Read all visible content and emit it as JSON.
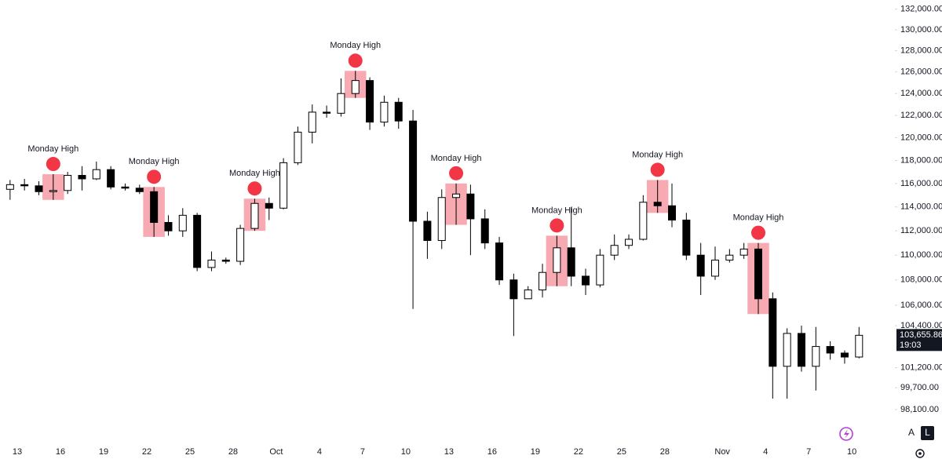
{
  "chart_data": {
    "type": "candlestick",
    "log_scale": true,
    "up_color": "#ffffff",
    "down_color": "#000000",
    "wick_color": "#000000",
    "box_color": "#f7a1aa",
    "marker_color": "#f23645",
    "categories": [
      null,
      "13",
      null,
      null,
      "16",
      null,
      null,
      "19",
      null,
      null,
      "22",
      null,
      null,
      "25",
      null,
      null,
      "28",
      null,
      null,
      "Oct",
      null,
      null,
      "4",
      null,
      null,
      "7",
      null,
      null,
      "10",
      null,
      null,
      "13",
      null,
      null,
      "16",
      null,
      null,
      "19",
      null,
      null,
      "22",
      null,
      null,
      "25",
      null,
      null,
      "28",
      null,
      null,
      null,
      "Nov",
      null,
      null,
      "4",
      null,
      null,
      "7",
      null,
      null,
      "10"
    ],
    "open": [
      115500,
      115900,
      115800,
      115300,
      115400,
      116700,
      116400,
      117200,
      115700,
      115600,
      115300,
      112700,
      112000,
      113300,
      109000,
      109600,
      109500,
      112200,
      114300,
      113900,
      117800,
      120500,
      122300,
      122200,
      124000,
      125200,
      121400,
      123200,
      121500,
      112800,
      111200,
      114800,
      115100,
      113000,
      111000,
      108000,
      106500,
      107200,
      108600,
      110600,
      108300,
      107600,
      110000,
      110800,
      111300,
      114400,
      114100,
      112900,
      110000,
      108300,
      109600,
      110000,
      110500,
      106500,
      101300,
      103800,
      101300,
      102800,
      102300,
      102000
    ],
    "high": [
      116300,
      116400,
      116200,
      116800,
      117000,
      117500,
      117900,
      117500,
      116000,
      115900,
      115700,
      113300,
      113900,
      113500,
      110300,
      109800,
      112500,
      114700,
      114800,
      118200,
      121000,
      123000,
      122900,
      125400,
      126100,
      125500,
      123800,
      123600,
      122500,
      113600,
      115500,
      116000,
      115900,
      113800,
      111500,
      108500,
      107500,
      109300,
      111600,
      114000,
      108900,
      110500,
      111700,
      111700,
      115000,
      116300,
      116000,
      113500,
      111000,
      110700,
      110500,
      111000,
      111000,
      107000,
      104200,
      104400,
      104300,
      103200,
      102500,
      104300
    ],
    "low": [
      114600,
      115400,
      115000,
      114600,
      115100,
      115400,
      116300,
      115500,
      115400,
      115100,
      111500,
      111600,
      111500,
      108700,
      108700,
      109300,
      109200,
      112000,
      112900,
      113800,
      117600,
      119500,
      121800,
      121900,
      123600,
      120700,
      121000,
      120800,
      105700,
      109700,
      110500,
      112500,
      110000,
      110500,
      107600,
      103600,
      106500,
      106600,
      107500,
      107500,
      106800,
      107400,
      109600,
      110500,
      111200,
      113500,
      112300,
      109600,
      106800,
      108000,
      109400,
      109700,
      105300,
      98900,
      98900,
      100900,
      99500,
      101800,
      101500,
      101900
    ],
    "close": [
      115900,
      115800,
      115300,
      115400,
      116700,
      116400,
      117200,
      115700,
      115600,
      115300,
      112700,
      112000,
      113300,
      109000,
      109600,
      109500,
      112200,
      114300,
      113900,
      117800,
      120500,
      122300,
      122200,
      124000,
      125200,
      121400,
      123200,
      121500,
      112800,
      111200,
      114800,
      115100,
      113000,
      111000,
      108000,
      106500,
      107200,
      108600,
      110600,
      108300,
      107600,
      110000,
      110800,
      111300,
      114400,
      114100,
      112900,
      110000,
      108300,
      109600,
      110000,
      110500,
      106500,
      101300,
      103800,
      101300,
      102800,
      102300,
      102000,
      103655.86
    ],
    "ylim": [
      96800,
      132900
    ],
    "yticks": [
      {
        "value": 132000,
        "label": "132,000.00"
      },
      {
        "value": 130000,
        "label": "130,000.00"
      },
      {
        "value": 128000,
        "label": "128,000.00"
      },
      {
        "value": 126000,
        "label": "126,000.00"
      },
      {
        "value": 124000,
        "label": "124,000.00"
      },
      {
        "value": 122000,
        "label": "122,000.00"
      },
      {
        "value": 120000,
        "label": "120,000.00"
      },
      {
        "value": 118000,
        "label": "118,000.00"
      },
      {
        "value": 116000,
        "label": "116,000.00"
      },
      {
        "value": 114000,
        "label": "114,000.00"
      },
      {
        "value": 112000,
        "label": "112,000.00"
      },
      {
        "value": 110000,
        "label": "110,000.00"
      },
      {
        "value": 108000,
        "label": "108,000.00"
      },
      {
        "value": 106000,
        "label": "106,000.00"
      },
      {
        "value": 104400,
        "label": "104,400.00"
      },
      {
        "value": 101200,
        "label": "101,200.00"
      },
      {
        "value": 99700,
        "label": "99,700.00"
      },
      {
        "value": 98100,
        "label": "98,100.00"
      }
    ],
    "last_price": {
      "value": 103655.86,
      "label": "103,655.86"
    },
    "countdown": "19:03",
    "annotations": [
      "Monday High",
      "Monday High",
      "Monday High",
      "Monday High",
      "Monday High",
      "Monday High",
      "Monday High",
      "Monday High"
    ]
  },
  "controls": [
    "A",
    "L"
  ]
}
